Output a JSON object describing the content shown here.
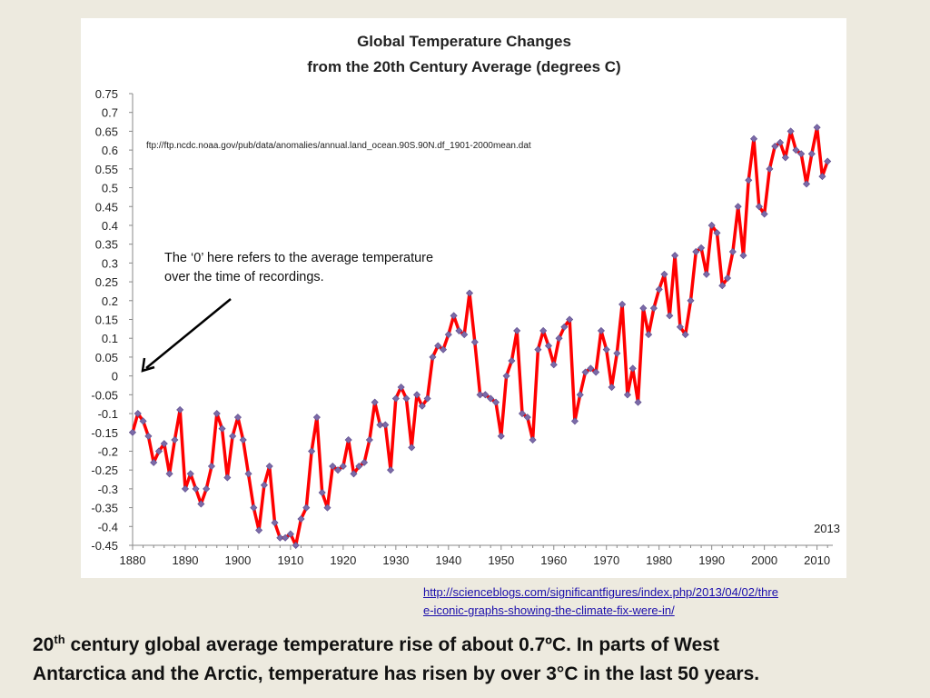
{
  "chart_data": {
    "type": "line",
    "title": [
      "Global Temperature Changes",
      "from the 20th Century Average (degrees C)"
    ],
    "source_label": "ftp://ftp.ncdc.noaa.gov/pub/data/anomalies/annual.land_ocean.90S.90N.df_1901-2000mean.dat",
    "corner_label": "2013",
    "xlabel": "",
    "ylabel": "",
    "xlim": [
      1880,
      2013
    ],
    "ylim": [
      -0.45,
      0.75
    ],
    "grid": false,
    "xticks": [
      "1880",
      "1890",
      "1900",
      "1910",
      "1920",
      "1930",
      "1940",
      "1950",
      "1960",
      "1970",
      "1980",
      "1990",
      "2000",
      "2010"
    ],
    "yticks": [
      "0.75",
      "0.7",
      "0.65",
      "0.6",
      "0.55",
      "0.5",
      "0.45",
      "0.4",
      "0.35",
      "0.3",
      "0.25",
      "0.2",
      "0.15",
      "0.1",
      "0.05",
      "0",
      "-0.05",
      "-0.1",
      "-0.15",
      "-0.2",
      "-0.25",
      "-0.3",
      "-0.35",
      "-0.4",
      "-0.45"
    ],
    "line_color": "#ff0000",
    "marker_color": "#7b6aa8",
    "x": [
      1880,
      1881,
      1882,
      1883,
      1884,
      1885,
      1886,
      1887,
      1888,
      1889,
      1890,
      1891,
      1892,
      1893,
      1894,
      1895,
      1896,
      1897,
      1898,
      1899,
      1900,
      1901,
      1902,
      1903,
      1904,
      1905,
      1906,
      1907,
      1908,
      1909,
      1910,
      1911,
      1912,
      1913,
      1914,
      1915,
      1916,
      1917,
      1918,
      1919,
      1920,
      1921,
      1922,
      1923,
      1924,
      1925,
      1926,
      1927,
      1928,
      1929,
      1930,
      1931,
      1932,
      1933,
      1934,
      1935,
      1936,
      1937,
      1938,
      1939,
      1940,
      1941,
      1942,
      1943,
      1944,
      1945,
      1946,
      1947,
      1948,
      1949,
      1950,
      1951,
      1952,
      1953,
      1954,
      1955,
      1956,
      1957,
      1958,
      1959,
      1960,
      1961,
      1962,
      1963,
      1964,
      1965,
      1966,
      1967,
      1968,
      1969,
      1970,
      1971,
      1972,
      1973,
      1974,
      1975,
      1976,
      1977,
      1978,
      1979,
      1980,
      1981,
      1982,
      1983,
      1984,
      1985,
      1986,
      1987,
      1988,
      1989,
      1990,
      1991,
      1992,
      1993,
      1994,
      1995,
      1996,
      1997,
      1998,
      1999,
      2000,
      2001,
      2002,
      2003,
      2004,
      2005,
      2006,
      2007,
      2008,
      2009,
      2010,
      2011,
      2012
    ],
    "values": [
      -0.15,
      -0.1,
      -0.12,
      -0.16,
      -0.23,
      -0.2,
      -0.18,
      -0.26,
      -0.17,
      -0.09,
      -0.3,
      -0.26,
      -0.3,
      -0.34,
      -0.3,
      -0.24,
      -0.1,
      -0.14,
      -0.27,
      -0.16,
      -0.11,
      -0.17,
      -0.26,
      -0.35,
      -0.41,
      -0.29,
      -0.24,
      -0.39,
      -0.43,
      -0.43,
      -0.42,
      -0.45,
      -0.38,
      -0.35,
      -0.2,
      -0.11,
      -0.31,
      -0.35,
      -0.24,
      -0.25,
      -0.24,
      -0.17,
      -0.26,
      -0.24,
      -0.23,
      -0.17,
      -0.07,
      -0.13,
      -0.13,
      -0.25,
      -0.06,
      -0.03,
      -0.06,
      -0.19,
      -0.05,
      -0.08,
      -0.06,
      0.05,
      0.08,
      0.07,
      0.11,
      0.16,
      0.12,
      0.11,
      0.22,
      0.09,
      -0.05,
      -0.05,
      -0.06,
      -0.07,
      -0.16,
      0.0,
      0.04,
      0.12,
      -0.1,
      -0.11,
      -0.17,
      0.07,
      0.12,
      0.08,
      0.03,
      0.1,
      0.13,
      0.15,
      -0.12,
      -0.05,
      0.01,
      0.02,
      0.01,
      0.12,
      0.07,
      -0.03,
      0.06,
      0.19,
      -0.05,
      0.02,
      -0.07,
      0.18,
      0.11,
      0.18,
      0.23,
      0.27,
      0.16,
      0.32,
      0.13,
      0.11,
      0.2,
      0.33,
      0.34,
      0.27,
      0.4,
      0.38,
      0.24,
      0.26,
      0.33,
      0.45,
      0.32,
      0.52,
      0.63,
      0.45,
      0.43,
      0.55,
      0.61,
      0.62,
      0.58,
      0.65,
      0.6,
      0.59,
      0.51,
      0.59,
      0.66,
      0.53,
      0.57
    ]
  },
  "annotation": {
    "line1": "The ‘0’ here refers to the average temperature",
    "line2": "over the time of recordings."
  },
  "source_link": {
    "line1": "http://scienceblogs.com/significantfigures/index.php/2013/04/02/thre",
    "line2": "e-iconic-graphs-showing-the-climate-fix-were-in/"
  },
  "caption": {
    "sup_prefix": "20",
    "sup": "th",
    "text1": " century global average temperature rise of about 0.7ºC. In parts of West",
    "text2": "Antarctica and the Arctic, temperature has risen by over 3°C in the last 50 years."
  }
}
